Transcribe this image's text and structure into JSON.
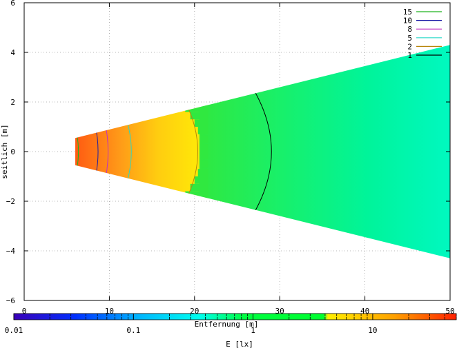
{
  "chart_data": {
    "type": "heatmap",
    "xlabel": "Entfernung [m]",
    "ylabel": "seitlich [m]",
    "xlim": [
      0,
      50
    ],
    "ylim": [
      -6,
      6
    ],
    "xticks": [
      "0",
      "10",
      "20",
      "30",
      "40",
      "50"
    ],
    "yticks": [
      "6",
      "4",
      "2",
      "0",
      "−2",
      "−4",
      "−6"
    ],
    "grid": true,
    "legend_position": "top-right",
    "illuminated_region": {
      "x_start": 6,
      "x_end": 50,
      "half_width_at_x_start": 0.55,
      "half_width_at_x_end": 4.3
    },
    "contours": [
      {
        "name": "15",
        "color": "#1fb51f",
        "x_center": 6.6
      },
      {
        "name": "10",
        "color": "#1a1aa6",
        "x_center": 8.9
      },
      {
        "name": "8",
        "color": "#c030c0",
        "x_center": 10.1
      },
      {
        "name": "5",
        "color": "#28d8c8",
        "x_center": 13.0
      },
      {
        "name": "2",
        "color": "#b8860b",
        "x_center": 21.3
      },
      {
        "name": "1",
        "color": "#000000",
        "x_center": 30.5
      }
    ],
    "colorbar": {
      "label": "E [lx]",
      "scale": "log",
      "range": [
        0.01,
        50
      ],
      "ticks": [
        "0.01",
        "0.1",
        "1",
        "10"
      ],
      "colors": [
        "#3a00b8",
        "#0030ff",
        "#00b4ff",
        "#00ffee",
        "#00ff40",
        "#ffee00",
        "#ffa000",
        "#ff2000"
      ]
    }
  }
}
